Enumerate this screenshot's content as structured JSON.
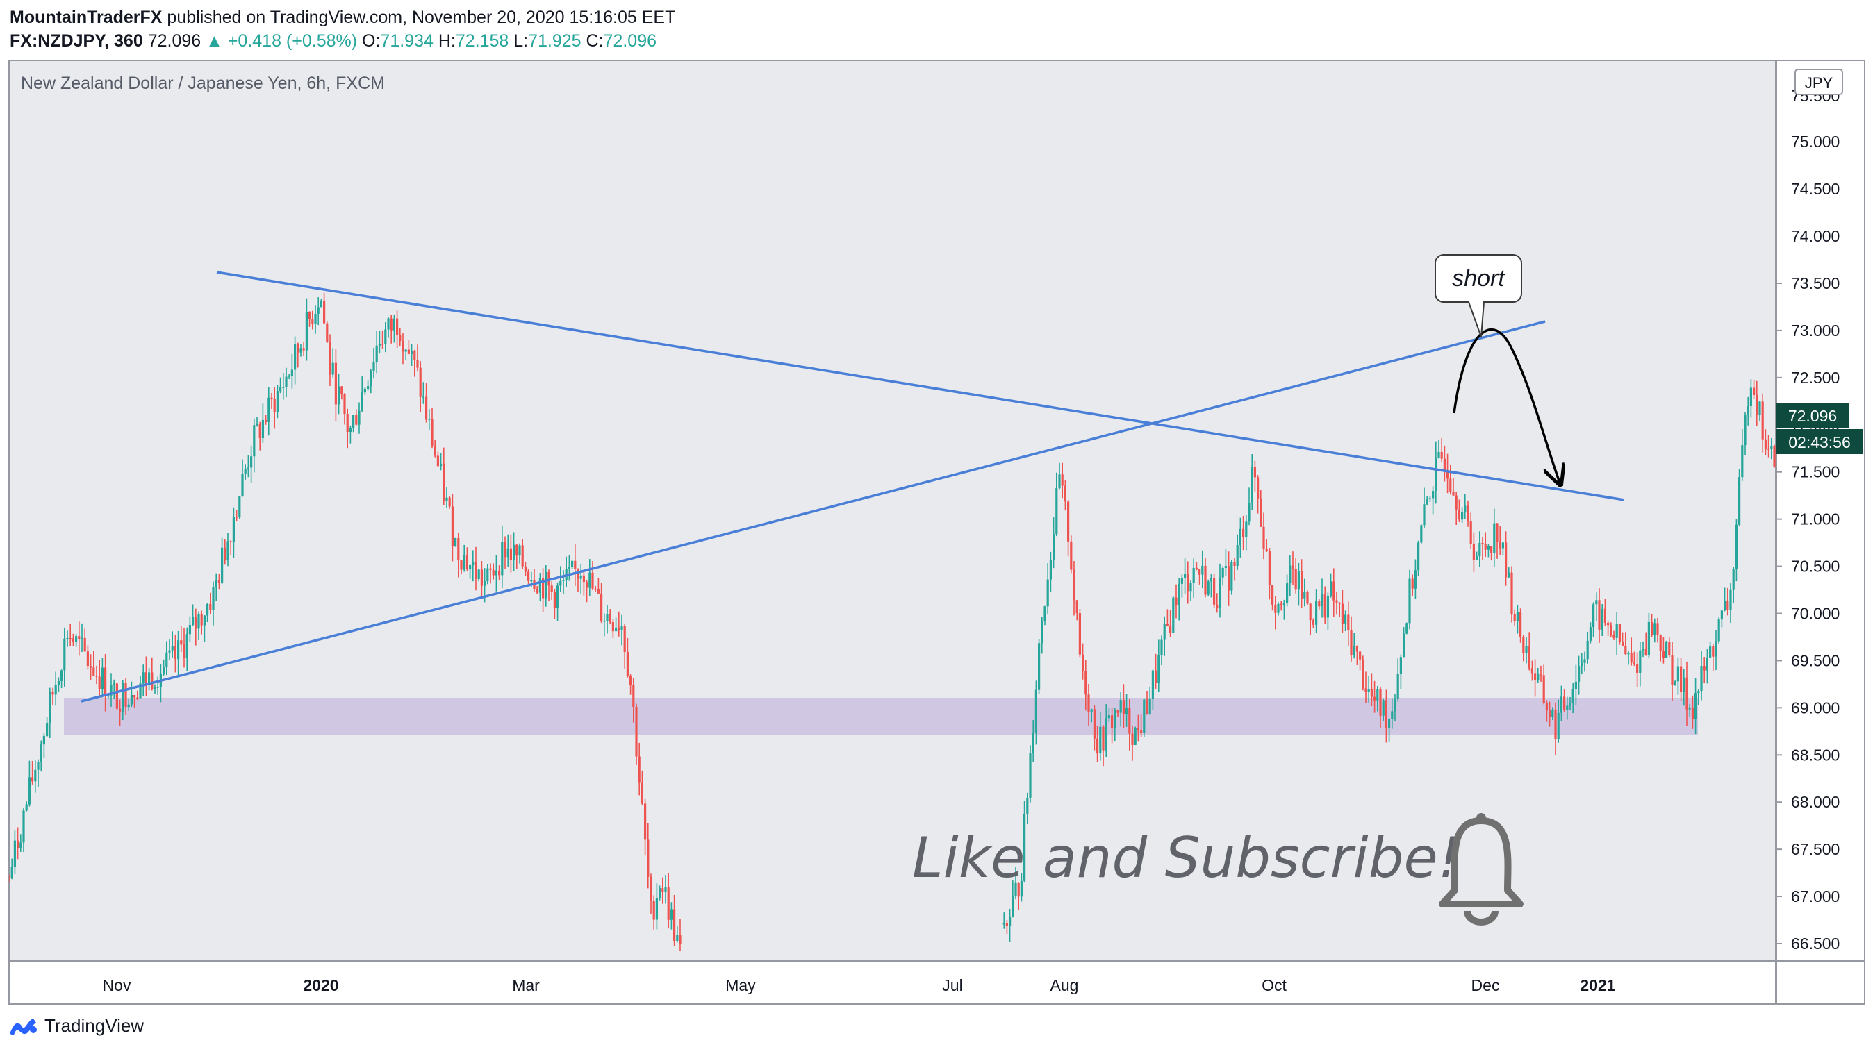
{
  "header": {
    "author": "MountainTraderFX",
    "published_text": "published on TradingView.com, November 20, 2020 15:16:05 EET",
    "symbol": "FX:NZDJPY, 360",
    "last": "72.096",
    "change": "▲ +0.418 (+0.58%)",
    "o_label": "O:",
    "o": "71.934",
    "h_label": "H:",
    "h": "72.158",
    "l_label": "L:",
    "l": "71.925",
    "c_label": "C:",
    "c": "72.096"
  },
  "chart_data": {
    "type": "candlestick",
    "title": "New Zealand Dollar / Japanese Yen, 6h, FXCM",
    "currency": "JPY",
    "y_ticks": [
      "73.500",
      "73.000",
      "72.500",
      "72.000",
      "71.500",
      "71.000",
      "70.500",
      "70.000",
      "69.500",
      "69.000",
      "68.500",
      "68.000",
      "67.500",
      "67.000",
      "66.500"
    ],
    "y_top_partial": "75.500",
    "x_ticks": [
      "Nov",
      "2020",
      "Mar",
      "May",
      "Jul",
      "Aug",
      "Oct",
      "Dec",
      "2021"
    ],
    "last_price_label": "72.096",
    "countdown_label": "02:43:56",
    "colors": {
      "up": "#26a69a",
      "down": "#ef5350",
      "trendline": "#4a7fd8",
      "zone": "#cfc6e2",
      "bg": "#e9eaee",
      "last_bg": "#0e4b3e"
    },
    "price_path": [
      [
        0,
        67.2
      ],
      [
        60,
        69.8
      ],
      [
        110,
        69.1
      ],
      [
        170,
        69.5
      ],
      [
        210,
        70.2
      ],
      [
        250,
        71.8
      ],
      [
        290,
        72.6
      ],
      [
        320,
        73.4
      ],
      [
        330,
        72.6
      ],
      [
        350,
        71.9
      ],
      [
        380,
        72.9
      ],
      [
        400,
        73.1
      ],
      [
        420,
        72.5
      ],
      [
        440,
        71.6
      ],
      [
        460,
        70.7
      ],
      [
        490,
        70.3
      ],
      [
        510,
        70.7
      ],
      [
        540,
        70.4
      ],
      [
        560,
        70.2
      ],
      [
        590,
        70.5
      ],
      [
        610,
        70.0
      ],
      [
        630,
        69.9
      ],
      [
        640,
        69.2
      ],
      [
        650,
        68.0
      ],
      [
        660,
        66.8
      ],
      [
        670,
        67.2
      ],
      [
        680,
        66.8
      ],
      [
        690,
        66.4
      ],
      [
        1020,
        66.5
      ],
      [
        1040,
        67.2
      ],
      [
        1060,
        69.8
      ],
      [
        1080,
        71.4
      ],
      [
        1090,
        70.8
      ],
      [
        1100,
        69.6
      ],
      [
        1120,
        68.6
      ],
      [
        1140,
        69.0
      ],
      [
        1160,
        68.7
      ],
      [
        1180,
        69.4
      ],
      [
        1200,
        70.2
      ],
      [
        1220,
        70.5
      ],
      [
        1240,
        70.2
      ],
      [
        1260,
        70.5
      ],
      [
        1280,
        71.5
      ],
      [
        1290,
        70.8
      ],
      [
        1300,
        70.1
      ],
      [
        1320,
        70.4
      ],
      [
        1340,
        70.0
      ],
      [
        1360,
        70.2
      ],
      [
        1380,
        69.7
      ],
      [
        1400,
        69.1
      ],
      [
        1420,
        68.9
      ],
      [
        1440,
        70.2
      ],
      [
        1460,
        71.3
      ],
      [
        1475,
        71.7
      ],
      [
        1490,
        71.2
      ],
      [
        1510,
        70.6
      ],
      [
        1530,
        70.9
      ],
      [
        1550,
        69.9
      ],
      [
        1570,
        69.3
      ],
      [
        1590,
        68.8
      ],
      [
        1610,
        69.3
      ],
      [
        1630,
        70.0
      ],
      [
        1650,
        69.8
      ],
      [
        1670,
        69.4
      ],
      [
        1690,
        69.9
      ],
      [
        1710,
        69.4
      ],
      [
        1730,
        69.0
      ],
      [
        1750,
        69.6
      ],
      [
        1770,
        70.2
      ],
      [
        1780,
        71.4
      ],
      [
        1790,
        72.6
      ],
      [
        1800,
        72.1
      ],
      [
        1810,
        71.6
      ],
      [
        1820,
        71.8
      ],
      [
        1830,
        71.7
      ],
      [
        1840,
        72.1
      ]
    ],
    "annotations": {
      "callout": "short",
      "watermark": "Like and Subscribe!"
    }
  },
  "footer": {
    "brand": "TradingView"
  }
}
